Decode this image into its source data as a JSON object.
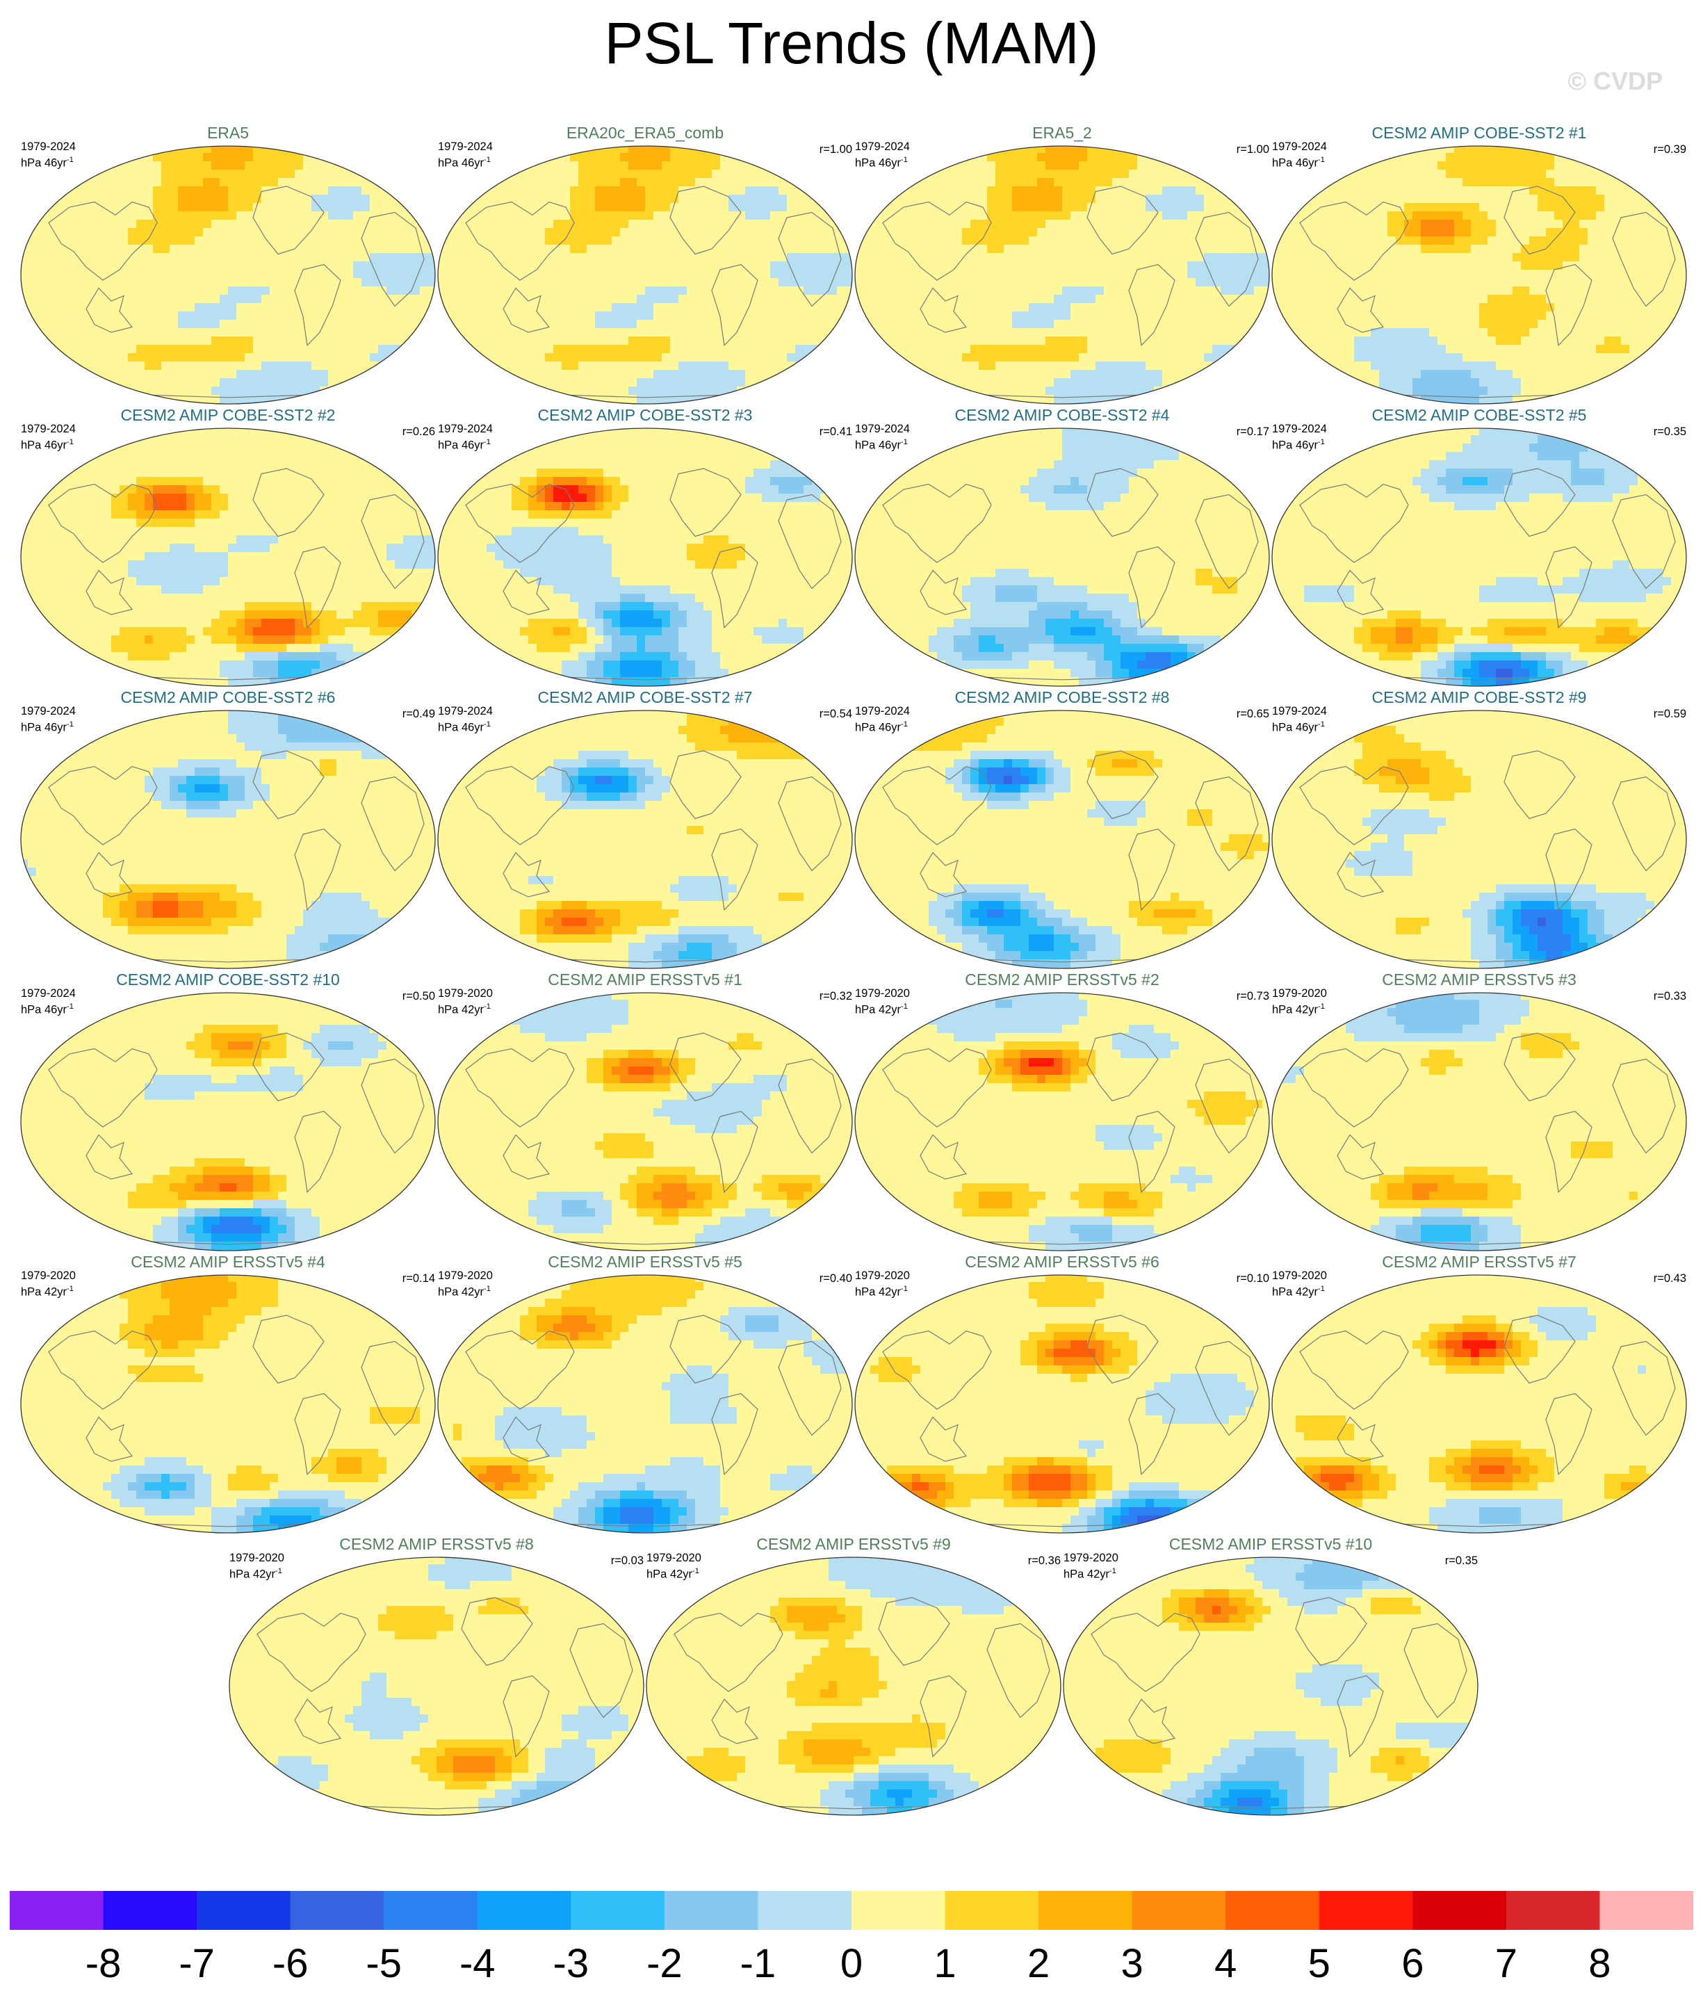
{
  "title": "PSL Trends (MAM)",
  "credit": "© CVDP",
  "colors": {
    "ref_title": "#4f7f5b",
    "cobe_title": "#1f6e86",
    "ersst_title": "#4f7f5b",
    "coastline": "#7a7a7a"
  },
  "chart_data": {
    "type": "heatmap",
    "projection": "global map (Robinson-like), Pacific-centered",
    "variable": "PSL trend",
    "season": "MAM",
    "colorbar": {
      "levels": [
        -8,
        -7,
        -6,
        -5,
        -4,
        -3,
        -2,
        -1,
        0,
        1,
        2,
        3,
        4,
        5,
        6,
        7,
        8
      ],
      "labels": [
        "-8",
        "-7",
        "-6",
        "-5",
        "-4",
        "-3",
        "-2",
        "-1",
        "0",
        "1",
        "2",
        "3",
        "4",
        "5",
        "6",
        "7",
        "8"
      ],
      "colors": [
        "#8a1ff2",
        "#2a0aff",
        "#1437e8",
        "#3763e3",
        "#2a82f5",
        "#11a3fa",
        "#2fc0f7",
        "#87c9ee",
        "#b6dff2",
        "#fff79a",
        "#ffd528",
        "#ffb30a",
        "#ff8c0e",
        "#ff5d06",
        "#ff1908",
        "#d90008",
        "#d8282c",
        "#ffb4b4"
      ]
    },
    "panels": [
      {
        "name": "ERA5",
        "period": "1979-2024",
        "units": "hPa 46yr",
        "units_exp": "-1",
        "r": "",
        "group": "ref",
        "pattern": 0
      },
      {
        "name": "ERA20c_ERA5_comb",
        "period": "1979-2024",
        "units": "hPa 46yr",
        "units_exp": "-1",
        "r": "r=1.00",
        "group": "ref",
        "pattern": 0
      },
      {
        "name": "ERA5_2",
        "period": "1979-2024",
        "units": "hPa 46yr",
        "units_exp": "-1",
        "r": "r=1.00",
        "group": "ref",
        "pattern": 0
      },
      {
        "name": "CESM2 AMIP COBE-SST2 #1",
        "period": "1979-2024",
        "units": "hPa 46yr",
        "units_exp": "-1",
        "r": "r=0.39",
        "group": "cobe",
        "pattern": 1
      },
      {
        "name": "CESM2 AMIP COBE-SST2 #2",
        "period": "1979-2024",
        "units": "hPa 46yr",
        "units_exp": "-1",
        "r": "r=0.26",
        "group": "cobe",
        "pattern": 2
      },
      {
        "name": "CESM2 AMIP COBE-SST2 #3",
        "period": "1979-2024",
        "units": "hPa 46yr",
        "units_exp": "-1",
        "r": "r=0.41",
        "group": "cobe",
        "pattern": 3
      },
      {
        "name": "CESM2 AMIP COBE-SST2 #4",
        "period": "1979-2024",
        "units": "hPa 46yr",
        "units_exp": "-1",
        "r": "r=0.17",
        "group": "cobe",
        "pattern": 4
      },
      {
        "name": "CESM2 AMIP COBE-SST2 #5",
        "period": "1979-2024",
        "units": "hPa 46yr",
        "units_exp": "-1",
        "r": "r=0.35",
        "group": "cobe",
        "pattern": 5
      },
      {
        "name": "CESM2 AMIP COBE-SST2 #6",
        "period": "1979-2024",
        "units": "hPa 46yr",
        "units_exp": "-1",
        "r": "r=0.49",
        "group": "cobe",
        "pattern": 6
      },
      {
        "name": "CESM2 AMIP COBE-SST2 #7",
        "period": "1979-2024",
        "units": "hPa 46yr",
        "units_exp": "-1",
        "r": "r=0.54",
        "group": "cobe",
        "pattern": 7
      },
      {
        "name": "CESM2 AMIP COBE-SST2 #8",
        "period": "1979-2024",
        "units": "hPa 46yr",
        "units_exp": "-1",
        "r": "r=0.65",
        "group": "cobe",
        "pattern": 8
      },
      {
        "name": "CESM2 AMIP COBE-SST2 #9",
        "period": "1979-2024",
        "units": "hPa 46yr",
        "units_exp": "-1",
        "r": "r=0.59",
        "group": "cobe",
        "pattern": 9
      },
      {
        "name": "CESM2 AMIP COBE-SST2 #10",
        "period": "1979-2024",
        "units": "hPa 46yr",
        "units_exp": "-1",
        "r": "r=0.50",
        "group": "cobe",
        "pattern": 10
      },
      {
        "name": "CESM2 AMIP ERSSTv5 #1",
        "period": "1979-2020",
        "units": "hPa 42yr",
        "units_exp": "-1",
        "r": "r=0.32",
        "group": "ersst",
        "pattern": 11
      },
      {
        "name": "CESM2 AMIP ERSSTv5 #2",
        "period": "1979-2020",
        "units": "hPa 42yr",
        "units_exp": "-1",
        "r": "r=0.73",
        "group": "ersst",
        "pattern": 12
      },
      {
        "name": "CESM2 AMIP ERSSTv5 #3",
        "period": "1979-2020",
        "units": "hPa 42yr",
        "units_exp": "-1",
        "r": "r=0.33",
        "group": "ersst",
        "pattern": 13
      },
      {
        "name": "CESM2 AMIP ERSSTv5 #4",
        "period": "1979-2020",
        "units": "hPa 42yr",
        "units_exp": "-1",
        "r": "r=0.14",
        "group": "ersst",
        "pattern": 14
      },
      {
        "name": "CESM2 AMIP ERSSTv5 #5",
        "period": "1979-2020",
        "units": "hPa 42yr",
        "units_exp": "-1",
        "r": "r=0.40",
        "group": "ersst",
        "pattern": 15
      },
      {
        "name": "CESM2 AMIP ERSSTv5 #6",
        "period": "1979-2020",
        "units": "hPa 42yr",
        "units_exp": "-1",
        "r": "r=0.10",
        "group": "ersst",
        "pattern": 16
      },
      {
        "name": "CESM2 AMIP ERSSTv5 #7",
        "period": "1979-2020",
        "units": "hPa 42yr",
        "units_exp": "-1",
        "r": "r=0.43",
        "group": "ersst",
        "pattern": 17
      },
      {
        "name": "CESM2 AMIP ERSSTv5 #8",
        "period": "1979-2020",
        "units": "hPa 42yr",
        "units_exp": "-1",
        "r": "r=0.03",
        "group": "ersst",
        "pattern": 18
      },
      {
        "name": "CESM2 AMIP ERSSTv5 #9",
        "period": "1979-2020",
        "units": "hPa 42yr",
        "units_exp": "-1",
        "r": "r=0.36",
        "group": "ersst",
        "pattern": 19
      },
      {
        "name": "CESM2 AMIP ERSSTv5 #10",
        "period": "1979-2020",
        "units": "hPa 42yr",
        "units_exp": "-1",
        "r": "r=0.35",
        "group": "ersst",
        "pattern": 20
      }
    ]
  }
}
